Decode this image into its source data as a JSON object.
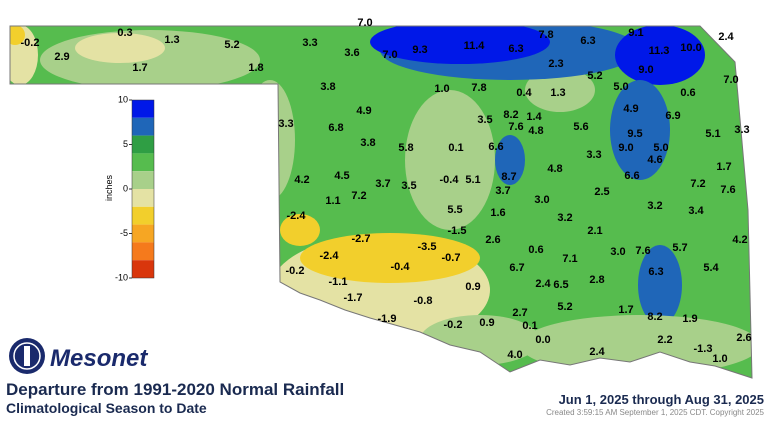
{
  "map": {
    "title": "Departure from 1991-2020 Normal Rainfall",
    "subtitle": "Climatological Season to Date",
    "period": "Jun 1, 2025 through Aug 31, 2025",
    "created": "Created 3:59:15 AM September 1, 2025 CDT. Copyright 2025",
    "logo": "Mesonet",
    "legend": {
      "label": "inches",
      "range": [
        -10,
        10
      ],
      "ticks": [
        10,
        5,
        0,
        -5,
        -10
      ],
      "colors": [
        "#0018e8",
        "#1f66b8",
        "#2f9e44",
        "#56bc4e",
        "#a8d08a",
        "#e4e2a4",
        "#f2cf2c",
        "#f6a623",
        "#f57a1c",
        "#d9360c"
      ]
    },
    "stations": [
      "-0.2",
      "2.9",
      "0.3",
      "1.3",
      "1.7",
      "5.2",
      "1.8",
      "3.3",
      "3.6",
      "7.0",
      "7.0",
      "9.3",
      "11.4",
      "6.3",
      "7.8",
      "6.3",
      "9.1",
      "11.3",
      "10.0",
      "2.4",
      "9.0",
      "7.0",
      "2.3",
      "5.2",
      "5.0",
      "0.6",
      "3.8",
      "1.0",
      "7.8",
      "0.4",
      "1.3",
      "4.9",
      "4.9",
      "6.9",
      "3.3",
      "6.8",
      "3.5",
      "8.2",
      "1.4",
      "7.6",
      "4.8",
      "5.6",
      "9.5",
      "5.1",
      "3.3",
      "3.8",
      "5.8",
      "0.1",
      "6.6",
      "9.0",
      "5.0",
      "3.3",
      "4.6",
      "1.7",
      "4.2",
      "4.5",
      "3.7",
      "3.5",
      "-0.4",
      "5.1",
      "8.7",
      "4.8",
      "6.6",
      "7.2",
      "7.6",
      "3.7",
      "2.5",
      "1.1",
      "7.2",
      "3.0",
      "5.5",
      "1.6",
      "3.2",
      "3.2",
      "3.4",
      "-2.4",
      "-1.5",
      "2.1",
      "-2.7",
      "-3.5",
      "2.6",
      "4.2",
      "0.6",
      "3.0",
      "7.6",
      "5.7",
      "-2.4",
      "-0.7",
      "7.1",
      "-0.2",
      "-0.4",
      "6.7",
      "6.3",
      "5.4",
      "-1.1",
      "2.4",
      "6.5",
      "2.8",
      "0.9",
      "-1.7",
      "-0.8",
      "5.2",
      "1.7",
      "2.7",
      "8.2",
      "1.9",
      "-1.9",
      "-0.2",
      "0.9",
      "0.1",
      "0.0",
      "2.2",
      "2.6",
      "-1.3",
      "2.4",
      "4.0",
      "1.0"
    ]
  }
}
